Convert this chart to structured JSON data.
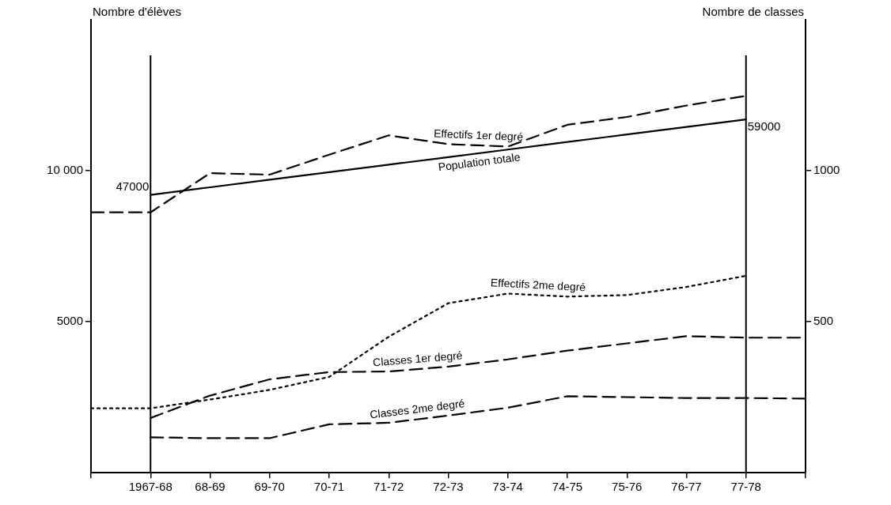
{
  "chart_data": {
    "type": "line",
    "xlabel": null,
    "ylabel": "Nombre d'élèves",
    "y2label": "Nombre de classes",
    "categories": [
      null,
      "1967-68",
      "68-69",
      "69-70",
      "70-71",
      "71-72",
      "72-73",
      "73-74",
      "74-75",
      "75-76",
      "76-77",
      "77-78",
      null
    ],
    "series": [
      {
        "name": "Population totale",
        "color": "#000000",
        "line_style": "solid",
        "values": [
          null,
          9200,
          9450,
          9700,
          9950,
          10200,
          10450,
          10700,
          10950,
          11200,
          11450,
          11700,
          null
        ]
      },
      {
        "name": "Effectifs 1er degré",
        "color": "#000000",
        "line_style": "dashed",
        "values": [
          8620,
          8620,
          9920,
          9870,
          10530,
          11170,
          10880,
          10800,
          11520,
          11780,
          12160,
          12480,
          null
        ]
      },
      {
        "name": "Effectifs 2me degré",
        "color": "#000000",
        "line_style": "dotted",
        "values": [
          2130,
          2130,
          2420,
          2740,
          3170,
          4500,
          5610,
          5930,
          5830,
          5880,
          6150,
          6520,
          null
        ]
      },
      {
        "name": "Classes 1er degré",
        "color": "#000000",
        "line_style": "dashed",
        "axis": "y2",
        "values": [
          null,
          181,
          255,
          309,
          333,
          335,
          351,
          375,
          404,
          428,
          452,
          447,
          447
        ]
      },
      {
        "name": "Classes 2me degré",
        "color": "#000000",
        "line_style": "dashed",
        "axis": "y2",
        "values": [
          null,
          117,
          114,
          114,
          160,
          165,
          189,
          215,
          253,
          250,
          247,
          247,
          245
        ]
      }
    ],
    "ylim": [
      0,
      15000
    ],
    "yticks": [
      {
        "value": 5000,
        "label": "5000"
      },
      {
        "value": 10000,
        "label": "10 000"
      }
    ],
    "y2lim": [
      0,
      1500
    ],
    "y2ticks": [
      500,
      1000
    ],
    "ref_lines": [
      {
        "axis": "x",
        "value": "1967-68",
        "label": null
      },
      {
        "axis": "x",
        "value": "77-78",
        "label": null
      }
    ],
    "annotations": [
      {
        "text": "47000",
        "x": "1967-68",
        "y": 9200
      },
      {
        "text": "59000",
        "x": "77-78",
        "y": 11700
      }
    ],
    "grid": false,
    "legend": false,
    "marker": "none"
  }
}
